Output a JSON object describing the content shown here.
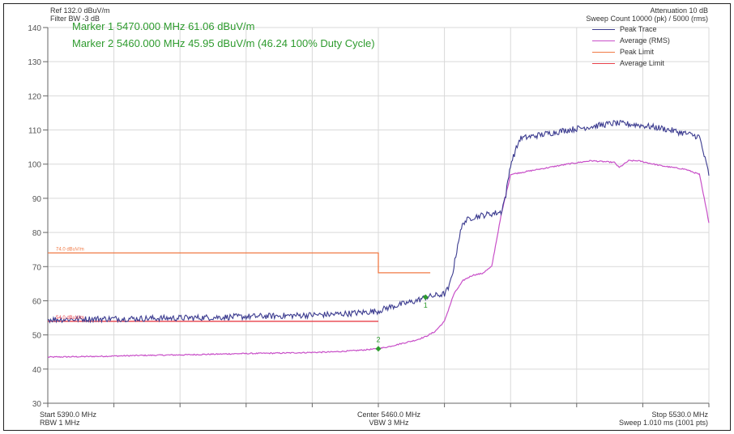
{
  "header": {
    "ref": "Ref 132.0 dBuV/m",
    "filter": "Filter BW -3 dB",
    "attenuation": "Attenuation 10 dB",
    "sweep_count": "Sweep Count 10000 (pk) / 5000 (rms)",
    "marker1": "Marker 1 5470.000 MHz 61.06 dBuV/m",
    "marker2": "Marker 2 5460.000 MHz 45.95 dBuV/m (46.24 100% Duty Cycle)"
  },
  "footer": {
    "start": "Start 5390.0 MHz",
    "rbw": "RBW 1 MHz",
    "center": "Center 5460.0 MHz",
    "vbw": "VBW 3 MHz",
    "stop": "Stop 5530.0 MHz",
    "sweep": "Sweep 1.010 ms (1001 pts)"
  },
  "colors": {
    "peak_trace": "#3b3b8f",
    "average_trace": "#c84fc8",
    "peak_limit": "#f07a45",
    "average_limit": "#e8414a",
    "marker": "#2e9b2e",
    "grid": "#d9d9d9"
  },
  "chart_data": {
    "type": "line",
    "xlim": [
      5390,
      5530
    ],
    "ylim": [
      30,
      140
    ],
    "yticks": [
      30,
      40,
      50,
      60,
      70,
      80,
      90,
      100,
      110,
      120,
      130,
      140
    ],
    "grid": true,
    "legend_position": "top-right",
    "series": [
      {
        "name": "Peak Trace",
        "x": [
          5390,
          5400,
          5410,
          5420,
          5430,
          5440,
          5450,
          5455,
          5460,
          5462,
          5465,
          5468,
          5470,
          5472,
          5474,
          5475,
          5476,
          5477,
          5478,
          5480,
          5482,
          5484,
          5486,
          5487,
          5488,
          5490,
          5492,
          5494,
          5496,
          5500,
          5505,
          5510,
          5515,
          5520,
          5525,
          5528,
          5530
        ],
        "values": [
          54.5,
          54.7,
          54.8,
          55.0,
          55.3,
          55.6,
          56.0,
          56.4,
          57.0,
          58.0,
          59.0,
          60.0,
          61.0,
          61.5,
          62.0,
          64.0,
          70.0,
          78.0,
          83.0,
          84.5,
          85.0,
          85.5,
          86.0,
          91.0,
          100.0,
          107.5,
          108.0,
          108.5,
          109.0,
          110.0,
          111.0,
          112.0,
          111.5,
          110.5,
          109.0,
          108.0,
          97.0
        ]
      },
      {
        "name": "Average (RMS)",
        "x": [
          5390,
          5400,
          5410,
          5420,
          5430,
          5440,
          5450,
          5455,
          5460,
          5462,
          5465,
          5468,
          5470,
          5472,
          5474,
          5476,
          5478,
          5480,
          5482,
          5484,
          5486,
          5488,
          5490,
          5494,
          5496,
          5500,
          5505,
          5510,
          5511,
          5512,
          5513,
          5515,
          5520,
          5525,
          5528,
          5530
        ],
        "values": [
          43.5,
          43.7,
          44.0,
          44.2,
          44.5,
          44.7,
          45.0,
          45.4,
          45.95,
          46.5,
          47.5,
          48.5,
          49.5,
          51.0,
          54.0,
          62.0,
          66.0,
          67.5,
          68.0,
          70.0,
          85.0,
          97.0,
          97.5,
          98.5,
          99.0,
          100.0,
          101.0,
          100.5,
          99.0,
          100.0,
          101.0,
          101.0,
          99.5,
          98.5,
          97.0,
          83.0
        ]
      },
      {
        "name": "Peak Limit",
        "x": [
          5390,
          5460,
          5460,
          5471
        ],
        "values": [
          74.0,
          74.0,
          68.2,
          68.2
        ]
      },
      {
        "name": "Average Limit",
        "x": [
          5390,
          5460
        ],
        "values": [
          54.0,
          54.0
        ]
      }
    ],
    "limit_labels": [
      {
        "text": "74.0 dBuV/m",
        "series": "Peak Limit"
      },
      {
        "text": "54.0 dBuV/m",
        "series": "Average Limit"
      }
    ],
    "markers": [
      {
        "label": "1",
        "x": 5470,
        "y": 61.06
      },
      {
        "label": "2",
        "x": 5460,
        "y": 45.95
      }
    ]
  }
}
